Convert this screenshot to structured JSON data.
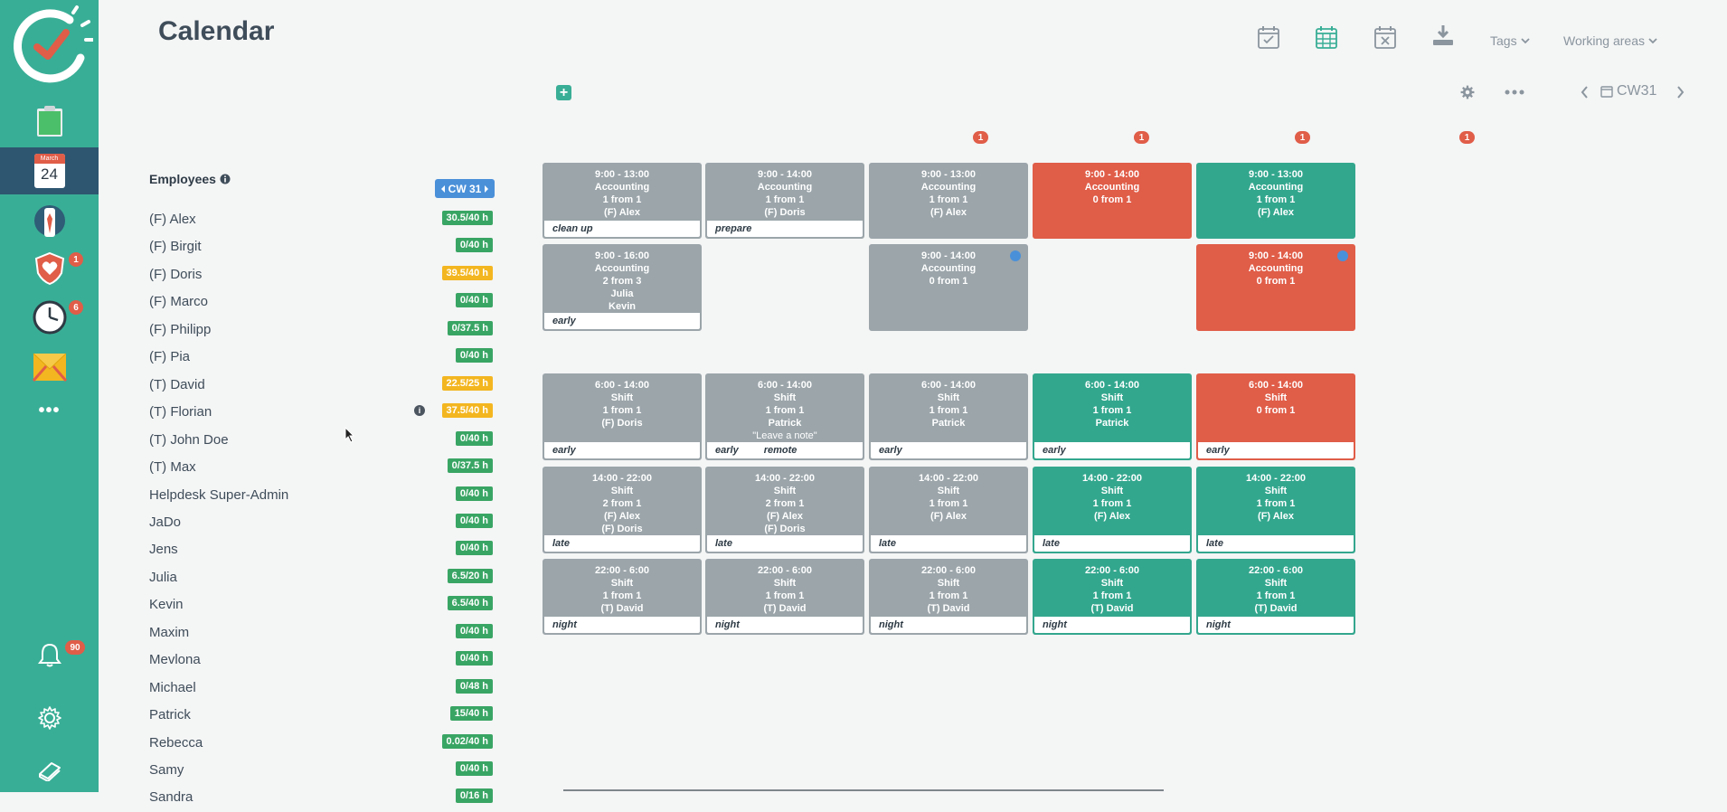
{
  "page": {
    "title": "Calendar"
  },
  "sidebar": {
    "calendar_icon": {
      "month": "March",
      "day": "24"
    },
    "badges": {
      "health": "1",
      "time": "6",
      "notifications": "90"
    },
    "more_label": "•••"
  },
  "toolbar": {
    "tags_label": "Tags",
    "working_areas_label": "Working areas",
    "week_label": "CW31"
  },
  "employees": {
    "header": "Employees",
    "week_pill": "CW 31",
    "list": [
      {
        "name": "(F) Alex",
        "hours": "30.5/40 h",
        "status": "green"
      },
      {
        "name": "(F) Birgit",
        "hours": "0/40 h",
        "status": "green"
      },
      {
        "name": "(F) Doris",
        "hours": "39.5/40 h",
        "status": "yellow"
      },
      {
        "name": "(F) Marco",
        "hours": "0/40 h",
        "status": "green"
      },
      {
        "name": "(F) Philipp",
        "hours": "0/37.5 h",
        "status": "green"
      },
      {
        "name": "(F) Pia",
        "hours": "0/40 h",
        "status": "green"
      },
      {
        "name": "(T) David",
        "hours": "22.5/25 h",
        "status": "yellow"
      },
      {
        "name": "(T) Florian",
        "hours": "37.5/40 h",
        "status": "yellow"
      },
      {
        "name": "(T) John Doe",
        "hours": "0/40 h",
        "status": "green"
      },
      {
        "name": "(T) Max",
        "hours": "0/37.5 h",
        "status": "green"
      },
      {
        "name": "Helpdesk Super-Admin",
        "hours": "0/40 h",
        "status": "green"
      },
      {
        "name": "JaDo",
        "hours": "0/40 h",
        "status": "green"
      },
      {
        "name": "Jens",
        "hours": "0/40 h",
        "status": "green"
      },
      {
        "name": "Julia",
        "hours": "6.5/20 h",
        "status": "green"
      },
      {
        "name": "Kevin",
        "hours": "6.5/40 h",
        "status": "green"
      },
      {
        "name": "Maxim",
        "hours": "0/40 h",
        "status": "green"
      },
      {
        "name": "Mevlona",
        "hours": "0/40 h",
        "status": "green"
      },
      {
        "name": "Michael",
        "hours": "0/48 h",
        "status": "green"
      },
      {
        "name": "Patrick",
        "hours": "15/40 h",
        "status": "green"
      },
      {
        "name": "Rebecca",
        "hours": "0.02/40 h",
        "status": "green"
      },
      {
        "name": "Samy",
        "hours": "0/40 h",
        "status": "green"
      },
      {
        "name": "Sandra",
        "hours": "0/16 h",
        "status": "green"
      }
    ]
  },
  "day_badges": [
    "1",
    "1",
    "1",
    "1"
  ],
  "shifts": [
    {
      "col": 0,
      "row": 0,
      "color": "grey",
      "lines": [
        "9:00 - 13:00",
        "Accounting",
        "1 from 1",
        "(F) Alex"
      ],
      "tags": [
        "clean up"
      ]
    },
    {
      "col": 1,
      "row": 0,
      "color": "grey",
      "lines": [
        "9:00 - 14:00",
        "Accounting",
        "1 from 1",
        "(F) Doris"
      ],
      "tags": [
        "prepare"
      ]
    },
    {
      "col": 2,
      "row": 0,
      "color": "grey",
      "lines": [
        "9:00 - 13:00",
        "Accounting",
        "1 from 1",
        "(F) Alex"
      ],
      "tags": []
    },
    {
      "col": 3,
      "row": 0,
      "color": "red",
      "lines": [
        "9:00 - 14:00",
        "Accounting",
        "0 from 1"
      ],
      "tags": []
    },
    {
      "col": 4,
      "row": 0,
      "color": "green",
      "lines": [
        "9:00 - 13:00",
        "Accounting",
        "1 from 1",
        "(F) Alex"
      ],
      "tags": []
    },
    {
      "col": 0,
      "row": 1,
      "color": "grey",
      "lines": [
        "9:00 - 16:00",
        "Accounting",
        "2 from 3",
        "Julia",
        "Kevin"
      ],
      "tags": [
        "early"
      ]
    },
    {
      "col": 2,
      "row": 1,
      "color": "grey",
      "lines": [
        "9:00 - 14:00",
        "Accounting",
        "0 from 1"
      ],
      "tags": [],
      "dot": true
    },
    {
      "col": 4,
      "row": 1,
      "color": "red",
      "lines": [
        "9:00 - 14:00",
        "Accounting",
        "0 from 1"
      ],
      "tags": [],
      "dot": true
    },
    {
      "col": 0,
      "row": 2,
      "color": "grey",
      "lines": [
        "6:00 - 14:00",
        "Shift",
        "1 from 1",
        "(F) Doris"
      ],
      "tags": [
        "early"
      ]
    },
    {
      "col": 1,
      "row": 2,
      "color": "grey",
      "lines": [
        "6:00 - 14:00",
        "Shift",
        "1 from 1",
        "Patrick",
        "\"Leave a note\""
      ],
      "tags": [
        "early",
        "remote"
      ]
    },
    {
      "col": 2,
      "row": 2,
      "color": "grey",
      "lines": [
        "6:00 - 14:00",
        "Shift",
        "1 from 1",
        "Patrick"
      ],
      "tags": [
        "early"
      ]
    },
    {
      "col": 3,
      "row": 2,
      "color": "green",
      "lines": [
        "6:00 - 14:00",
        "Shift",
        "1 from 1",
        "Patrick"
      ],
      "tags": [
        "early"
      ]
    },
    {
      "col": 4,
      "row": 2,
      "color": "red",
      "lines": [
        "6:00 - 14:00",
        "Shift",
        "0 from 1"
      ],
      "tags": [
        "early"
      ]
    },
    {
      "col": 0,
      "row": 3,
      "color": "grey",
      "lines": [
        "14:00 - 22:00",
        "Shift",
        "2 from 1",
        "(F) Alex",
        "(F) Doris"
      ],
      "tags": [
        "late"
      ]
    },
    {
      "col": 1,
      "row": 3,
      "color": "grey",
      "lines": [
        "14:00 - 22:00",
        "Shift",
        "2 from 1",
        "(F) Alex",
        "(F) Doris"
      ],
      "tags": [
        "late"
      ]
    },
    {
      "col": 2,
      "row": 3,
      "color": "grey",
      "lines": [
        "14:00 - 22:00",
        "Shift",
        "1 from 1",
        "(F) Alex"
      ],
      "tags": [
        "late"
      ]
    },
    {
      "col": 3,
      "row": 3,
      "color": "green",
      "lines": [
        "14:00 - 22:00",
        "Shift",
        "1 from 1",
        "(F) Alex"
      ],
      "tags": [
        "late"
      ]
    },
    {
      "col": 4,
      "row": 3,
      "color": "green",
      "lines": [
        "14:00 - 22:00",
        "Shift",
        "1 from 1",
        "(F) Alex"
      ],
      "tags": [
        "late"
      ]
    },
    {
      "col": 0,
      "row": 4,
      "color": "grey",
      "lines": [
        "22:00 - 6:00",
        "Shift",
        "1 from 1",
        "(T) David"
      ],
      "tags": [
        "night"
      ]
    },
    {
      "col": 1,
      "row": 4,
      "color": "grey",
      "lines": [
        "22:00 - 6:00",
        "Shift",
        "1 from 1",
        "(T) David"
      ],
      "tags": [
        "night"
      ]
    },
    {
      "col": 2,
      "row": 4,
      "color": "grey",
      "lines": [
        "22:00 - 6:00",
        "Shift",
        "1 from 1",
        "(T) David"
      ],
      "tags": [
        "night"
      ]
    },
    {
      "col": 3,
      "row": 4,
      "color": "green",
      "lines": [
        "22:00 - 6:00",
        "Shift",
        "1 from 1",
        "(T) David"
      ],
      "tags": [
        "night"
      ]
    },
    {
      "col": 4,
      "row": 4,
      "color": "green",
      "lines": [
        "22:00 - 6:00",
        "Shift",
        "1 from 1",
        "(T) David"
      ],
      "tags": [
        "night"
      ]
    }
  ],
  "colors": {
    "brand": "#39ae96",
    "sidebar_active": "#2e5670",
    "red": "#e05d48",
    "grey": "#9ba5aa",
    "green": "#33a78e",
    "yellow": "#f3b620",
    "blue": "#4a90d9"
  }
}
